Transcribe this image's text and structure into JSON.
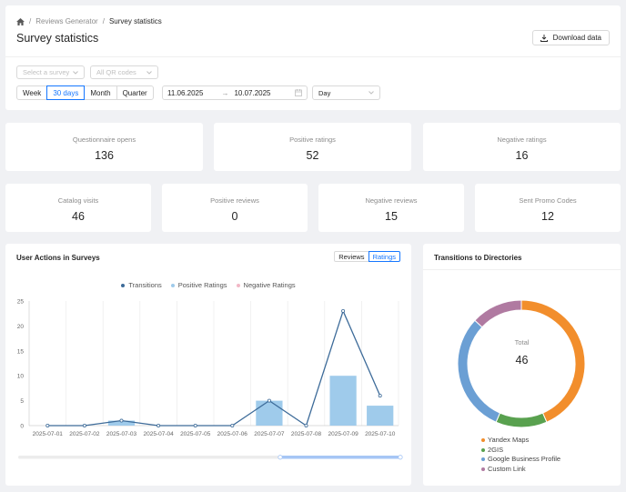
{
  "breadcrumb": {
    "parent": "Reviews Generator",
    "current": "Survey statistics"
  },
  "page_title": "Survey statistics",
  "download_label": "Download data",
  "filters": {
    "survey_placeholder": "Select a survey",
    "qr_placeholder": "All QR codes",
    "periods": [
      "Week",
      "30 days",
      "Month",
      "Quarter"
    ],
    "active_period": "30 days",
    "date_from": "11.06.2025",
    "date_to": "10.07.2025",
    "granularity": "Day"
  },
  "stats_row1": [
    {
      "label": "Questionnaire opens",
      "value": "136"
    },
    {
      "label": "Positive ratings",
      "value": "52"
    },
    {
      "label": "Negative ratings",
      "value": "16"
    }
  ],
  "stats_row2": [
    {
      "label": "Catalog visits",
      "value": "46"
    },
    {
      "label": "Positive reviews",
      "value": "0"
    },
    {
      "label": "Negative reviews",
      "value": "15"
    },
    {
      "label": "Sent Promo Codes",
      "value": "12"
    }
  ],
  "actions_panel": {
    "title": "User Actions in Surveys",
    "toggle": [
      "Reviews",
      "Ratings"
    ],
    "active_toggle": "Ratings"
  },
  "directions_panel": {
    "title": "Transitions to Directories",
    "total_label": "Total",
    "total_value": "46"
  },
  "colors": {
    "accent": "#1677ff",
    "transitions": "#3d6b99",
    "positive": "#9fcbeb",
    "negative": "#f2b8c6"
  },
  "chart_data": [
    {
      "type": "bar",
      "categories": [
        "2025-07-01",
        "2025-07-02",
        "2025-07-03",
        "2025-07-04",
        "2025-07-05",
        "2025-07-06",
        "2025-07-07",
        "2025-07-08",
        "2025-07-09",
        "2025-07-10"
      ],
      "ylim": [
        0,
        25
      ],
      "yticks": [
        0,
        5,
        10,
        15,
        20,
        25
      ],
      "series": [
        {
          "name": "Transitions",
          "type": "line",
          "color": "#3d6b99",
          "values": [
            0,
            0,
            1,
            0,
            0,
            0,
            5,
            0,
            23,
            6
          ]
        },
        {
          "name": "Positive Ratings",
          "type": "bar",
          "color": "#9fcbeb",
          "values": [
            0,
            0,
            1,
            0,
            0,
            0,
            5,
            0,
            10,
            4
          ]
        },
        {
          "name": "Negative Ratings",
          "type": "bar",
          "color": "#f2b8c6",
          "values": [
            0,
            0,
            0,
            0,
            0,
            0,
            0,
            0,
            0,
            0
          ]
        }
      ],
      "legend_position": "top"
    },
    {
      "type": "pie",
      "donut": true,
      "categories": [
        "Yandex Maps",
        "2GIS",
        "Google Business Profile",
        "Custom Link"
      ],
      "values": [
        20,
        6,
        14,
        6
      ],
      "colors": [
        "#f28e2c",
        "#59a14f",
        "#6b9fd4",
        "#b07aa1"
      ],
      "legend_position": "bottom"
    }
  ]
}
